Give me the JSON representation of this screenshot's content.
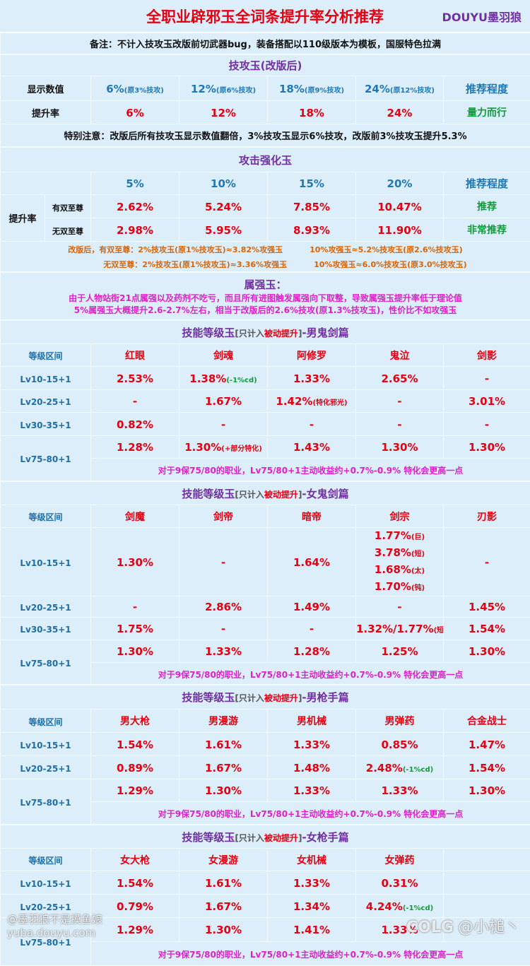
{
  "header": {
    "title": "全职业辟邪玉全词条提升率分析推荐",
    "brand": "DOUYU墨羽狼",
    "note": "备注：不计入技攻玉改版前切武器bug，装备搭配以110级版本为模板，国服特色拉满"
  },
  "skill_attack": {
    "title": "技攻玉(改版后)",
    "rows": [
      {
        "label": "显示数值",
        "cells": [
          {
            "value": "6%",
            "note": "(原3%技攻)"
          },
          {
            "value": "12%",
            "note": "(原6%技攻)"
          },
          {
            "value": "18%",
            "note": "(原9%技攻)"
          },
          {
            "value": "24%",
            "note": "(原12%技攻)"
          },
          "推荐程度"
        ]
      },
      {
        "label": "提升率",
        "cells": [
          "6%",
          "12%",
          "18%",
          "24%",
          "量力而行"
        ]
      }
    ],
    "warning": "特别注意：改版后所有技攻玉显示数值翻倍，3%技攻玉显示6%技攻，改版前3%技攻玉提升5.3%"
  },
  "attack_boost": {
    "title": "攻击强化玉",
    "header": [
      "5%",
      "10%",
      "15%",
      "20%",
      "推荐程度"
    ],
    "group_label": "提升率",
    "rows": [
      {
        "label": "有双至尊",
        "cells": [
          "2.62%",
          "5.24%",
          "7.85%",
          "10.47%",
          "推荐"
        ]
      },
      {
        "label": "无双至尊",
        "cells": [
          "2.98%",
          "5.95%",
          "8.93%",
          "11.90%",
          "非常推荐"
        ]
      }
    ],
    "notes": [
      [
        "改版后，有双至尊：2%技攻玉(原1%技攻玉)≈3.82%攻强玉",
        "10%攻强玉≈5.2%技攻玉(原2.6%技攻玉)"
      ],
      [
        "无双至尊：2%技攻玉(原1%技攻玉)≈3.36%攻强玉",
        "10%攻强玉≈6.0%技攻玉(原3.0%技攻玉)"
      ]
    ]
  },
  "element": {
    "title": "属强玉：",
    "lines": [
      "由于人物站街21点属强以及药剂不吃亏，而且所有进图触发属强向下取整，导致属强玉提升率低于理论值",
      "5%属强玉大概提升2.6-2.7%左右，相当于改版后的2.6%技攻(原1.3%技攻玉)，性价比不如攻强玉"
    ]
  },
  "skill_sections": [
    {
      "title": {
        "prefix": "技能等级玉",
        "open": "[只计入",
        "highlight": "被动提升",
        "close": "]",
        "suffix": "-男鬼剑篇"
      },
      "header_label": "等级区间",
      "classes": [
        "红眼",
        "剑魂",
        "阿修罗",
        "鬼泣",
        "剑影"
      ],
      "rows": [
        {
          "level": "Lv10-15+1",
          "cells": [
            "2.53%",
            {
              "value": "1.38%",
              "note": "(-1%cd)"
            },
            "1.33%",
            "2.65%",
            "-"
          ]
        },
        {
          "level": "Lv20-25+1",
          "cells": [
            "-",
            "1.67%",
            {
              "value": "1.42%",
              "note": "(特化邪光)"
            },
            "-",
            "3.01%"
          ]
        },
        {
          "level": "Lv30-35+1",
          "cells": [
            "0.82%",
            "-",
            "-",
            "-",
            "-"
          ]
        },
        {
          "level": "Lv75-80+1",
          "cells": [
            "1.28%",
            {
              "value": "1.30%",
              "note": "(+部分特化)"
            },
            "1.43%",
            "1.30%",
            "1.30%"
          ]
        }
      ],
      "note": "对于9保75/80的职业，Lv75/80+1主动收益约+0.7%-0.9% 特化会更高一点"
    },
    {
      "title": {
        "prefix": "技能等级玉",
        "open": "[只计入",
        "highlight": "被动提升",
        "close": "]",
        "suffix": "-女鬼剑篇"
      },
      "header_label": "等级区间",
      "classes": [
        "剑魔",
        "剑帝",
        "暗帝",
        "剑宗",
        "刃影"
      ],
      "rows": [
        {
          "level": "Lv10-15+1",
          "cells": [
            "1.30%",
            "-",
            "1.64%",
            [
              {
                "value": "1.77%",
                "note": "(巨)"
              },
              {
                "value": "3.78%",
                "note": "(短)"
              },
              {
                "value": "1.68%",
                "note": "(太)"
              },
              {
                "value": "1.70%",
                "note": "(钝)"
              }
            ],
            "-"
          ]
        },
        {
          "level": "Lv20-25+1",
          "cells": [
            "-",
            "2.86%",
            "1.49%",
            "-",
            "1.45%"
          ]
        },
        {
          "level": "Lv30-35+1",
          "cells": [
            "1.75%",
            "-",
            "-",
            {
              "value": "1.32%/1.77%",
              "note": "(短)"
            },
            "1.54%"
          ]
        },
        {
          "level": "Lv75-80+1",
          "cells": [
            "1.30%",
            "1.33%",
            "1.28%",
            "1.25%",
            "1.30%"
          ]
        }
      ],
      "note": "对于9保75/80的职业，Lv75/80+1主动收益约+0.7%-0.9% 特化会更高一点"
    },
    {
      "title": {
        "prefix": "技能等级玉",
        "open": "[只计入",
        "highlight": "被动提升",
        "close": "]",
        "suffix": "-男枪手篇"
      },
      "header_label": "等级区间",
      "classes": [
        "男大枪",
        "男漫游",
        "男机械",
        "男弹药",
        "合金战士"
      ],
      "rows": [
        {
          "level": "Lv10-15+1",
          "cells": [
            "1.54%",
            "1.61%",
            "1.33%",
            "0.85%",
            "1.47%"
          ]
        },
        {
          "level": "Lv20-25+1",
          "cells": [
            "0.89%",
            "1.67%",
            "1.48%",
            {
              "value": "2.48%",
              "note": "(-1%cd)"
            },
            "1.54%"
          ]
        },
        {
          "level": "Lv75-80+1",
          "cells": [
            "1.29%",
            "1.30%",
            "1.33%",
            "1.33%",
            "1.30%"
          ]
        }
      ],
      "note": "对于9保75/80的职业，Lv75/80+1主动收益约+0.7%-0.9% 特化会更高一点"
    },
    {
      "title": {
        "prefix": "技能等级玉",
        "open": "[只计入",
        "highlight": "被动提升",
        "close": "]",
        "suffix": "-女枪手篇"
      },
      "header_label": "等级区间",
      "classes": [
        "女大枪",
        "女漫游",
        "女机械",
        "女弹药"
      ],
      "rows": [
        {
          "level": "Lv10-15+1",
          "cells": [
            "1.54%",
            "1.61%",
            "1.33%",
            "0.31%"
          ]
        },
        {
          "level": "Lv20-25+1",
          "cells": [
            "0.79%",
            "1.67%",
            "1.34%",
            {
              "value": "4.24%",
              "note": "(-1%cd)"
            }
          ]
        },
        {
          "level": "Lv75-80+1",
          "cells": [
            "1.29%",
            "1.30%",
            "1.41%",
            "1.33%"
          ]
        }
      ],
      "note": "对于9保75/80的职业，Lv75/80+1主动收益约+0.7%-0.9% 特化会更高一点"
    }
  ],
  "watermarks": {
    "left": [
      "@墨羽狼不是摸鱼娘",
      "yuba.douyu.com"
    ],
    "right": [
      "COLG",
      "@小槌丶"
    ]
  }
}
